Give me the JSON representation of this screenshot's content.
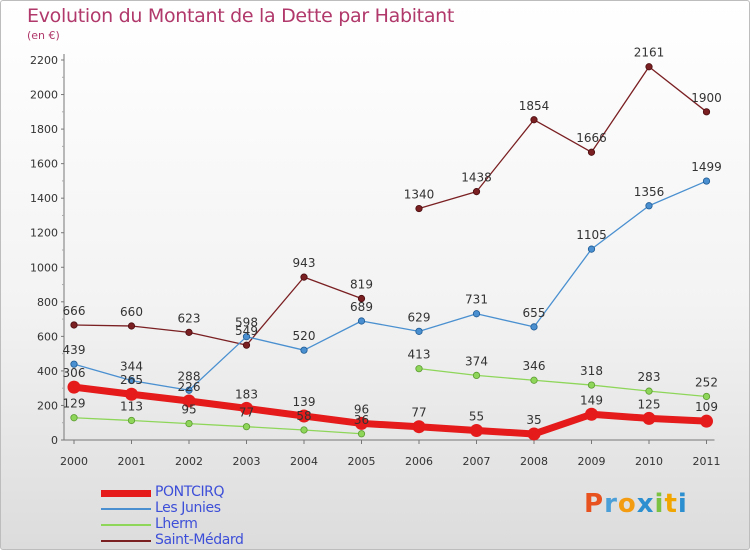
{
  "title": "Evolution du Montant de la Dette par Habitant",
  "subtitle": "(en €)",
  "logo_text": "Proxiti",
  "logo_colors": [
    "#e8521e",
    "#4a9fd8",
    "#f39c12",
    "#2b8fd0",
    "#7cc242",
    "#f0a500",
    "#2b8fd0"
  ],
  "chart_data": {
    "type": "line",
    "xlabel": "",
    "ylabel": "",
    "ylim": [
      0,
      2200
    ],
    "yticks": [
      0,
      200,
      400,
      600,
      800,
      1000,
      1200,
      1400,
      1600,
      1800,
      2000,
      2200
    ],
    "grid": false,
    "legend_position": "bottom-left",
    "categories": [
      "2000",
      "2001",
      "2002",
      "2003",
      "2004",
      "2005",
      "2006",
      "2007",
      "2008",
      "2009",
      "2010",
      "2011"
    ],
    "series": [
      {
        "name": "PONTCIRQ",
        "color": "#e51a1a",
        "values": [
          306,
          265,
          226,
          183,
          139,
          96,
          77,
          55,
          35,
          149,
          125,
          109
        ],
        "segments": [
          [
            0,
            11
          ]
        ]
      },
      {
        "name": "Les Junies",
        "color": "#4a90d0",
        "values": [
          439,
          344,
          288,
          598,
          520,
          689,
          629,
          731,
          655,
          1105,
          1356,
          1499
        ],
        "segments": [
          [
            0,
            11
          ]
        ]
      },
      {
        "name": "Lherm",
        "color": "#8ed65a",
        "values": [
          129,
          113,
          95,
          77,
          58,
          36,
          413,
          374,
          346,
          318,
          283,
          252
        ],
        "segments": [
          [
            0,
            5
          ],
          [
            6,
            11
          ]
        ]
      },
      {
        "name": "Saint-Médard",
        "color": "#7a1f22",
        "values": [
          666,
          660,
          623,
          549,
          943,
          819,
          1340,
          1438,
          1854,
          1666,
          2161,
          1900
        ],
        "segments": [
          [
            0,
            5
          ],
          [
            6,
            11
          ]
        ]
      }
    ]
  }
}
